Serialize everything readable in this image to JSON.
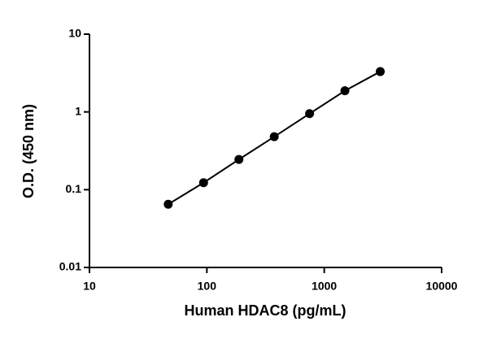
{
  "chart_data": {
    "type": "scatter",
    "x_label": "Human HDAC8  (pg/mL)",
    "y_label": "O.D. (450 nm)",
    "x_log": true,
    "y_log": true,
    "xlim": [
      10,
      10000
    ],
    "ylim": [
      0.01,
      10
    ],
    "xticks": [
      10,
      100,
      1000,
      10000
    ],
    "yticks": [
      0.01,
      0.1,
      1,
      10
    ],
    "line": true,
    "series": [
      {
        "color": "#000000",
        "x": [
          46.875,
          93.75,
          187.5,
          375,
          750,
          1500,
          3000
        ],
        "values": [
          0.065,
          0.123,
          0.245,
          0.48,
          0.95,
          1.87,
          3.3
        ]
      }
    ]
  }
}
